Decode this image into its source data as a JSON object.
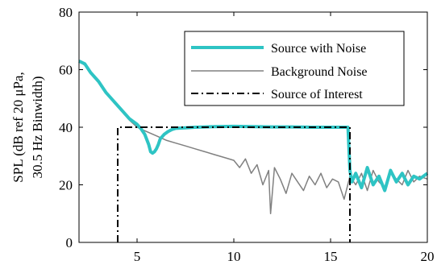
{
  "chart_data": {
    "type": "line",
    "title": "",
    "xlabel": "",
    "ylabel_lines": [
      "SPL (dB ref 20 μPa,",
      "30.5 Hz Binwidth)"
    ],
    "xlim": [
      2,
      20
    ],
    "ylim": [
      0,
      80
    ],
    "xticks": [
      5,
      10,
      15,
      20
    ],
    "yticks": [
      0,
      20,
      40,
      60,
      80
    ],
    "grid": false,
    "legend_position": "top-right",
    "series": [
      {
        "name": "Source with Noise",
        "color": "#2ec4c4",
        "style": "solid-thick",
        "x": [
          2.0,
          2.3,
          2.6,
          3.0,
          3.4,
          3.8,
          4.2,
          4.6,
          5.0,
          5.2,
          5.4,
          5.6,
          5.7,
          5.8,
          5.9,
          6.0,
          6.1,
          6.2,
          6.4,
          6.6,
          6.8,
          7.0,
          7.5,
          8.0,
          9.0,
          10.0,
          11.0,
          12.0,
          13.0,
          14.0,
          15.0,
          15.9,
          16.0,
          16.1,
          16.3,
          16.6,
          16.9,
          17.2,
          17.5,
          17.8,
          18.1,
          18.4,
          18.7,
          19.0,
          19.3,
          19.6,
          20.0
        ],
        "y": [
          63,
          62,
          59,
          56,
          52,
          49,
          46,
          43,
          41,
          39.5,
          37.5,
          34,
          31.5,
          31,
          31.5,
          32.5,
          34,
          36,
          37.5,
          38.5,
          39.2,
          39.6,
          39.8,
          40,
          40.2,
          40.3,
          40.2,
          40.1,
          40.1,
          40,
          40,
          40,
          25,
          21,
          24,
          19,
          26,
          20,
          23,
          18,
          25,
          21,
          24,
          20,
          23,
          22,
          24
        ]
      },
      {
        "name": "Background Noise",
        "color": "#808080",
        "style": "solid-thin",
        "x": [
          2.0,
          2.3,
          2.6,
          3.0,
          3.4,
          3.8,
          4.2,
          4.6,
          5.0,
          5.5,
          6.0,
          6.5,
          7.0,
          7.5,
          8.0,
          8.5,
          9.0,
          9.5,
          10.0,
          10.3,
          10.6,
          10.9,
          11.2,
          11.5,
          11.8,
          11.9,
          12.1,
          12.4,
          12.7,
          13.0,
          13.3,
          13.6,
          13.9,
          14.2,
          14.5,
          14.8,
          15.1,
          15.4,
          15.7,
          16.0,
          16.3,
          16.6,
          16.9,
          17.2,
          17.5,
          17.8,
          18.1,
          18.4,
          18.7,
          19.0,
          19.3,
          19.6,
          20.0
        ],
        "y": [
          63,
          61.5,
          58.5,
          55.5,
          52,
          48.5,
          45.5,
          42.5,
          40,
          38.5,
          37,
          35.5,
          34.5,
          33.5,
          32.5,
          31.5,
          30.5,
          29.5,
          28.5,
          26,
          29,
          24,
          27,
          20,
          25,
          10,
          26,
          22,
          17,
          24,
          21,
          18,
          23,
          20,
          24,
          19,
          22,
          21,
          15,
          23,
          20,
          24,
          18,
          25,
          21,
          19,
          24,
          22,
          20,
          25,
          21,
          23,
          22
        ]
      },
      {
        "name": "Source of Interest",
        "color": "#000000",
        "style": "dash-dot",
        "x": [
          4.0,
          4.0,
          16.0,
          16.0
        ],
        "y": [
          0,
          40,
          40,
          0
        ]
      }
    ]
  }
}
